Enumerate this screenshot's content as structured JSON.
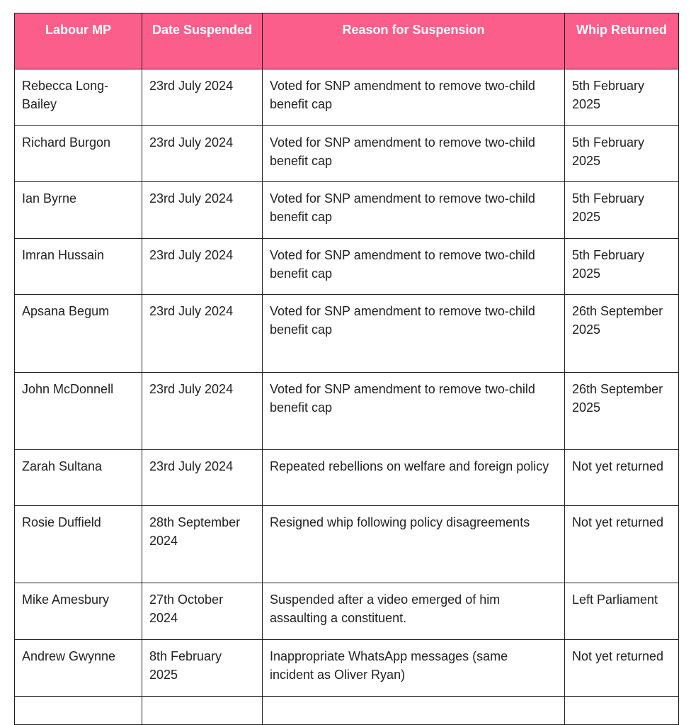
{
  "table": {
    "headers": [
      "Labour MP",
      "Date Suspended",
      "Reason for Suspension",
      "Whip Returned"
    ],
    "rows": [
      [
        "Rebecca Long-Bailey",
        "23rd July 2024",
        "Voted for SNP amendment to remove two-child benefit cap",
        "5th February 2025"
      ],
      [
        "Richard Burgon",
        "23rd July 2024",
        "Voted for SNP amendment to remove two-child benefit cap",
        "5th February 2025"
      ],
      [
        "Ian Byrne",
        "23rd July 2024",
        "Voted for SNP amendment to remove two-child benefit cap",
        "5th February 2025"
      ],
      [
        "Imran Hussain",
        "23rd July 2024",
        "Voted for SNP amendment to remove two-child benefit cap",
        "5th February 2025"
      ],
      [
        "Apsana Begum",
        "23rd July 2024",
        "Voted for SNP amendment to remove two-child benefit cap",
        "26th September 2025"
      ],
      [
        "John McDonnell",
        "23rd July 2024",
        "Voted for SNP amendment to remove two-child benefit cap",
        "26th September 2025"
      ],
      [
        "Zarah Sultana",
        "23rd July 2024",
        "Repeated rebellions on welfare and foreign policy",
        "Not yet returned"
      ],
      [
        "Rosie Duffield",
        "28th September 2024",
        "Resigned whip following policy disagreements",
        "Not yet returned"
      ],
      [
        "Mike Amesbury",
        "27th October 2024",
        "Suspended after a video emerged of him assaulting a constituent.",
        "Left Parliament"
      ],
      [
        "Andrew Gwynne",
        "8th February 2025",
        "Inappropriate WhatsApp messages (same incident as Oliver Ryan)",
        "Not yet returned"
      ]
    ]
  }
}
